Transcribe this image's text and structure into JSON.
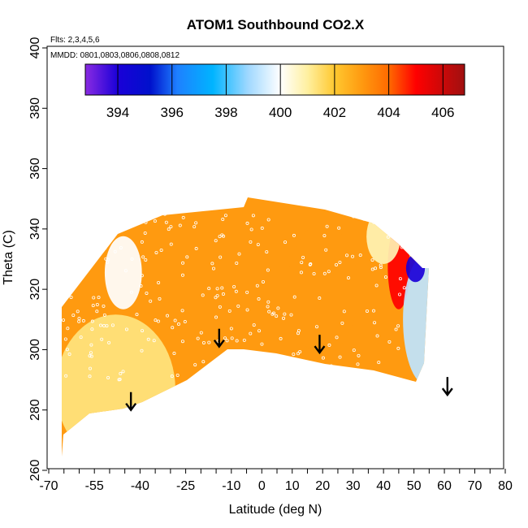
{
  "chart_data": {
    "type": "heatmap",
    "title": "ATOM1 Southbound CO2.X",
    "annotations": [
      "Flts: 2,3,4,5,6",
      "MMDD: 0801,0803,0806,0808,0812"
    ],
    "xlabel": "Latitude (deg N)",
    "ylabel": "Theta (C)",
    "xlim": [
      -70,
      80
    ],
    "ylim": [
      260,
      400
    ],
    "x_ticks": [
      -70,
      -55,
      -40,
      -25,
      -10,
      0,
      10,
      20,
      30,
      40,
      50,
      60,
      70,
      80
    ],
    "x_tick_labels": [
      "-70",
      "-55",
      "-40",
      "-25",
      "-10",
      "0",
      "10",
      "20",
      "30",
      "40",
      "50",
      "60",
      "70",
      "80"
    ],
    "y_ticks": [
      260,
      280,
      300,
      320,
      340,
      360,
      380,
      400
    ],
    "y_tick_labels": [
      "260",
      "280",
      "300",
      "320",
      "340",
      "360",
      "380",
      "400"
    ],
    "colorbar": {
      "min": 392.8,
      "max": 406.8,
      "ticks": [
        394,
        396,
        398,
        400,
        402,
        404,
        406
      ],
      "tick_labels": [
        "394",
        "396",
        "398",
        "400",
        "402",
        "404",
        "406"
      ],
      "stops": [
        {
          "value": 392.8,
          "color": "#8a2be2"
        },
        {
          "value": 394.0,
          "color": "#1a00d8"
        },
        {
          "value": 395.2,
          "color": "#0011cc"
        },
        {
          "value": 396.2,
          "color": "#1e80ff"
        },
        {
          "value": 397.5,
          "color": "#00b4ff"
        },
        {
          "value": 398.8,
          "color": "#9fd8ff"
        },
        {
          "value": 400.0,
          "color": "#ffffff"
        },
        {
          "value": 401.0,
          "color": "#fff0a0"
        },
        {
          "value": 402.0,
          "color": "#ffc830"
        },
        {
          "value": 403.0,
          "color": "#ff9a10"
        },
        {
          "value": 404.0,
          "color": "#ff6a00"
        },
        {
          "value": 405.0,
          "color": "#ff0000"
        },
        {
          "value": 406.8,
          "color": "#a01010"
        }
      ]
    },
    "tropopause_arrows": [
      {
        "lat": -43,
        "theta": 280
      },
      {
        "lat": -14,
        "theta": 301
      },
      {
        "lat": 19,
        "theta": 299
      },
      {
        "lat": 61,
        "theta": 285
      }
    ],
    "field_regions": [
      {
        "name": "south-lowlevel",
        "lat_range": [
          -66,
          -30
        ],
        "theta_range": [
          264,
          310
        ],
        "value": 401.3
      },
      {
        "name": "south-plume",
        "lat_range": [
          -50,
          -41
        ],
        "theta_range": [
          315,
          336
        ],
        "value": 400.0
      },
      {
        "name": "midlat-north",
        "lat_range": [
          10,
          30
        ],
        "theta_range": [
          300,
          340
        ],
        "value": 403.0
      },
      {
        "name": "ridge",
        "lat_range": [
          43,
          47
        ],
        "theta_range": [
          315,
          340
        ],
        "value": 405.0
      },
      {
        "name": "north-low",
        "lat_range": [
          48,
          60
        ],
        "theta_range": [
          290,
          330
        ],
        "value": 399.2
      },
      {
        "name": "north-min",
        "lat_range": [
          49,
          52
        ],
        "theta_range": [
          324,
          330
        ],
        "value": 394.0
      },
      {
        "name": "south-cap",
        "lat_range": [
          36,
          44
        ],
        "theta_range": [
          330,
          345
        ],
        "value": 400.8
      }
    ],
    "series_colors": {
      "arrows": "#000000",
      "points": "#ffffff"
    }
  }
}
